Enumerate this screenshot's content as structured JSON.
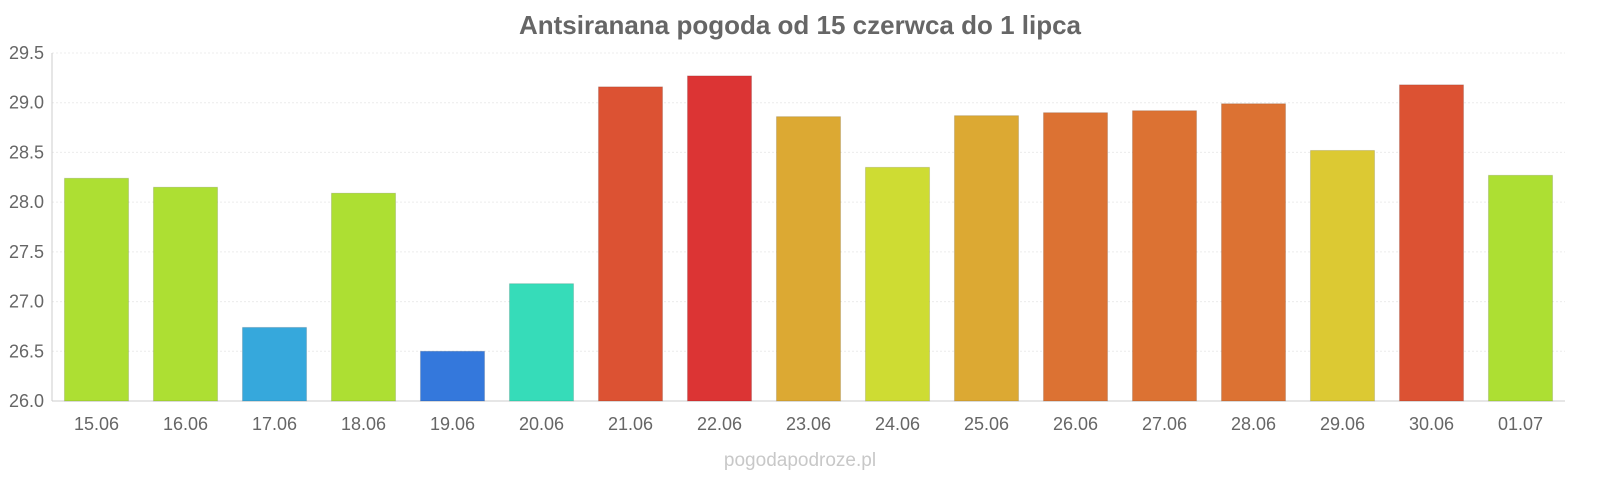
{
  "chart_data": {
    "type": "bar",
    "title": "Antsiranana pogoda od 15 czerwca do 1 lipca",
    "categories": [
      "15.06",
      "16.06",
      "17.06",
      "18.06",
      "19.06",
      "20.06",
      "21.06",
      "22.06",
      "23.06",
      "24.06",
      "25.06",
      "26.06",
      "27.06",
      "28.06",
      "29.06",
      "30.06",
      "01.07"
    ],
    "values": [
      28.24,
      28.15,
      26.74,
      28.09,
      26.5,
      27.18,
      29.16,
      29.27,
      28.86,
      28.35,
      28.87,
      28.9,
      28.92,
      28.99,
      28.52,
      29.18,
      28.27
    ],
    "colors": [
      "#addf33",
      "#addf33",
      "#36a8dc",
      "#addf33",
      "#3478dc",
      "#36dcb9",
      "#dc5233",
      "#dc3434",
      "#dca933",
      "#cedc33",
      "#dca933",
      "#dc7233",
      "#dc7233",
      "#dc7233",
      "#dcc933",
      "#dc5233",
      "#addf33"
    ],
    "yticks": [
      "26.0",
      "26.5",
      "27.0",
      "27.5",
      "28.0",
      "28.5",
      "29.0",
      "29.5"
    ],
    "ylim": [
      26.0,
      29.5
    ],
    "xlabel": "",
    "ylabel": "",
    "grid": true,
    "legend": "none"
  },
  "footer": "pogodapodroze.pl"
}
